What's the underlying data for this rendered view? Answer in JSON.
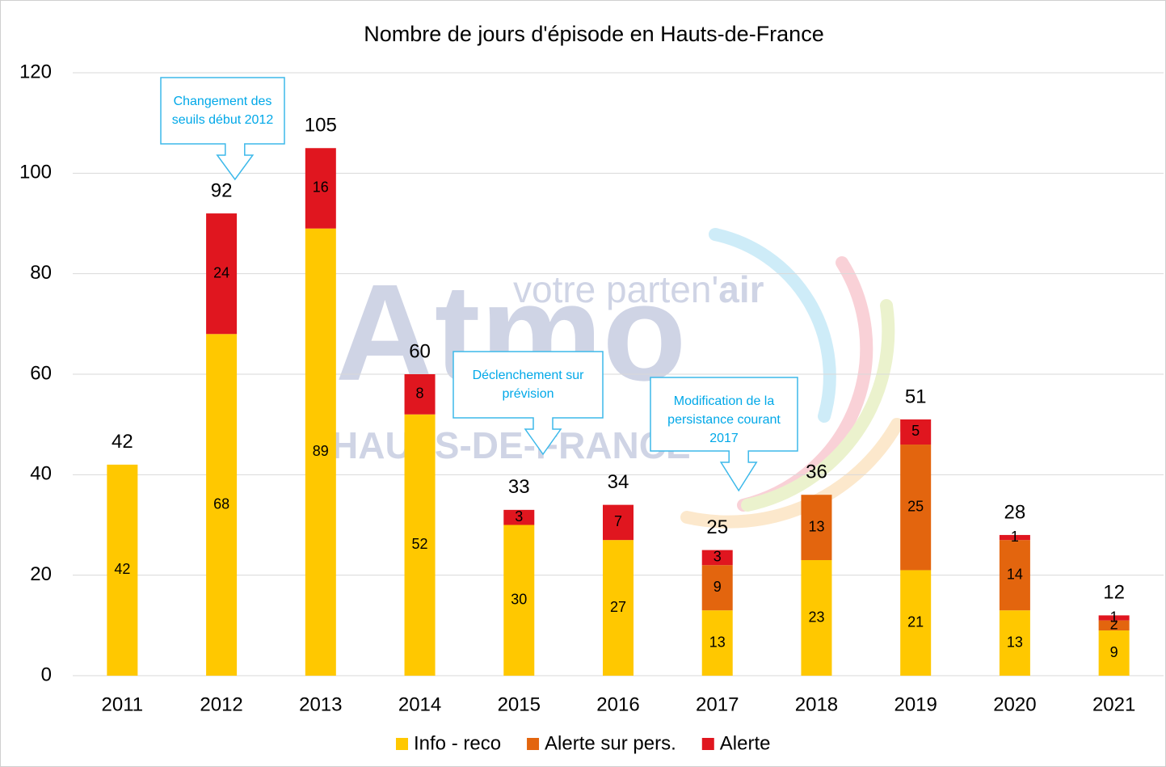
{
  "chart_data": {
    "type": "stacked_bar",
    "title": "Nombre de jours d'épisode en Hauts-de-France",
    "categories": [
      "2011",
      "2012",
      "2013",
      "2014",
      "2015",
      "2016",
      "2017",
      "2018",
      "2019",
      "2020",
      "2021"
    ],
    "series": [
      {
        "name": "Info - reco",
        "color": "#ffc800",
        "values": [
          42,
          68,
          89,
          52,
          30,
          27,
          13,
          23,
          21,
          13,
          9
        ]
      },
      {
        "name": "Alerte sur pers.",
        "color": "#e3650e",
        "values": [
          null,
          null,
          null,
          null,
          null,
          null,
          9,
          13,
          25,
          14,
          2
        ]
      },
      {
        "name": "Alerte",
        "color": "#e0161f",
        "values": [
          null,
          24,
          16,
          8,
          3,
          7,
          3,
          null,
          5,
          1,
          1
        ]
      }
    ],
    "totals": [
      42,
      92,
      105,
      60,
      33,
      34,
      25,
      36,
      51,
      28,
      12
    ],
    "ylim": [
      0,
      120
    ],
    "yticks": [
      0,
      20,
      40,
      60,
      80,
      100,
      120
    ],
    "grid": true,
    "legend": "bottom",
    "annotations": [
      {
        "text": "Changement des seuils début 2012",
        "category": 1
      },
      {
        "text": "Déclenchement sur prévision",
        "category": 4
      },
      {
        "text": "Modification de la persistance courant 2017",
        "category": 6
      }
    ],
    "watermark": {
      "brand": "Atmo",
      "tagline": "votre parten'",
      "tagline_bold": "air",
      "region": "HAUTS-DE-FRANCE"
    }
  }
}
